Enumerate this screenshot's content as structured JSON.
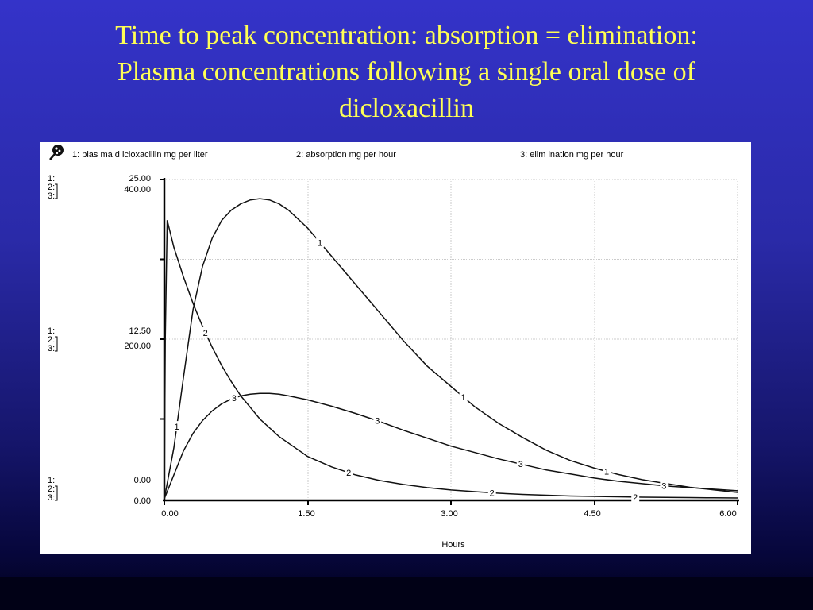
{
  "slide": {
    "title": [
      "Time to peak concentration: absorption = elimination:",
      "Plasma concentrations following a single oral dose of",
      "dicloxacillin"
    ]
  },
  "chart_data": {
    "type": "line",
    "xlabel": "Hours",
    "xlim": [
      0,
      6
    ],
    "x_ticks": [
      "0.00",
      "1.50",
      "3.00",
      "4.50",
      "6.00"
    ],
    "grid": true,
    "legend": [
      {
        "id": "1",
        "label": "1: plas ma d icloxacillin mg per liter"
      },
      {
        "id": "2",
        "label": "2: absorption mg per hour"
      },
      {
        "id": "3",
        "label": "3: elim ination mg per hour"
      }
    ],
    "axis_labels": {
      "top": {
        "markers": [
          "1:",
          "2:",
          "3:"
        ],
        "values": [
          "25.00",
          "400.00"
        ]
      },
      "mid": {
        "markers": [
          "1:",
          "2:",
          "3:"
        ],
        "values": [
          "12.50",
          "200.00"
        ]
      },
      "bottom": {
        "markers": [
          "1:",
          "2:",
          "3:"
        ],
        "values": [
          "0.00",
          "0.00"
        ]
      }
    },
    "series": [
      {
        "id": "1",
        "name": "plasma dicloxacillin mg per liter",
        "ylim": [
          0,
          25
        ],
        "x": [
          0.0,
          0.1,
          0.2,
          0.3,
          0.4,
          0.5,
          0.6,
          0.7,
          0.8,
          0.9,
          1.0,
          1.1,
          1.2,
          1.3,
          1.4,
          1.5,
          1.75,
          2.0,
          2.25,
          2.5,
          2.75,
          3.0,
          3.25,
          3.5,
          3.75,
          4.0,
          4.25,
          4.5,
          4.75,
          5.0,
          5.25,
          5.5,
          5.75,
          6.0
        ],
        "values": [
          0.0,
          4.0,
          9.5,
          14.8,
          18.2,
          20.4,
          21.8,
          22.6,
          23.1,
          23.4,
          23.5,
          23.4,
          23.1,
          22.6,
          21.9,
          21.2,
          19.0,
          16.8,
          14.6,
          12.4,
          10.4,
          8.8,
          7.2,
          5.9,
          4.8,
          3.8,
          3.0,
          2.4,
          1.9,
          1.5,
          1.2,
          0.9,
          0.7,
          0.5
        ]
      },
      {
        "id": "2",
        "name": "absorption mg per hour",
        "ylim": [
          0,
          400
        ],
        "x": [
          0.0,
          0.01,
          0.03,
          0.1,
          0.2,
          0.3,
          0.4,
          0.5,
          0.6,
          0.7,
          0.8,
          1.0,
          1.2,
          1.5,
          1.75,
          2.0,
          2.25,
          2.5,
          2.75,
          3.0,
          3.25,
          3.5,
          3.75,
          4.0,
          4.25,
          4.5,
          4.75,
          5.0,
          5.25,
          5.5,
          5.75,
          6.0
        ],
        "values": [
          0.0,
          200.0,
          349.0,
          315.0,
          278.0,
          245.0,
          216.0,
          190.0,
          167.0,
          147.0,
          129.0,
          100.0,
          78.0,
          53.0,
          40.0,
          30.0,
          23.0,
          18.0,
          14.0,
          11.0,
          9.0,
          7.0,
          5.5,
          4.5,
          3.5,
          3.0,
          2.5,
          2.0,
          1.8,
          1.5,
          1.2,
          1.0
        ]
      },
      {
        "id": "3",
        "name": "elimination mg per hour",
        "ylim": [
          0,
          400
        ],
        "x": [
          0.0,
          0.1,
          0.2,
          0.3,
          0.4,
          0.5,
          0.6,
          0.7,
          0.8,
          0.9,
          1.0,
          1.1,
          1.2,
          1.3,
          1.5,
          1.75,
          2.0,
          2.25,
          2.5,
          2.75,
          3.0,
          3.25,
          3.5,
          3.75,
          4.0,
          4.25,
          4.5,
          4.75,
          5.0,
          5.25,
          5.5,
          5.75,
          6.0
        ],
        "values": [
          0.0,
          30.0,
          60.0,
          82.0,
          98.0,
          110.0,
          119.0,
          125.0,
          129.0,
          131.0,
          132.0,
          132.0,
          131.0,
          129.0,
          124.0,
          116.0,
          107.0,
          97.0,
          86.0,
          76.0,
          66.0,
          58.0,
          50.0,
          43.0,
          36.0,
          31.0,
          26.0,
          22.0,
          19.0,
          16.0,
          14.0,
          12.0,
          10.0
        ]
      }
    ],
    "inline_labels": [
      {
        "series": "1",
        "x": [
          0.13,
          1.63,
          3.13,
          4.63
        ]
      },
      {
        "series": "2",
        "x": [
          0.43,
          1.93,
          3.43,
          4.93
        ]
      },
      {
        "series": "3",
        "x": [
          0.73,
          2.23,
          3.73,
          5.23
        ]
      }
    ]
  }
}
